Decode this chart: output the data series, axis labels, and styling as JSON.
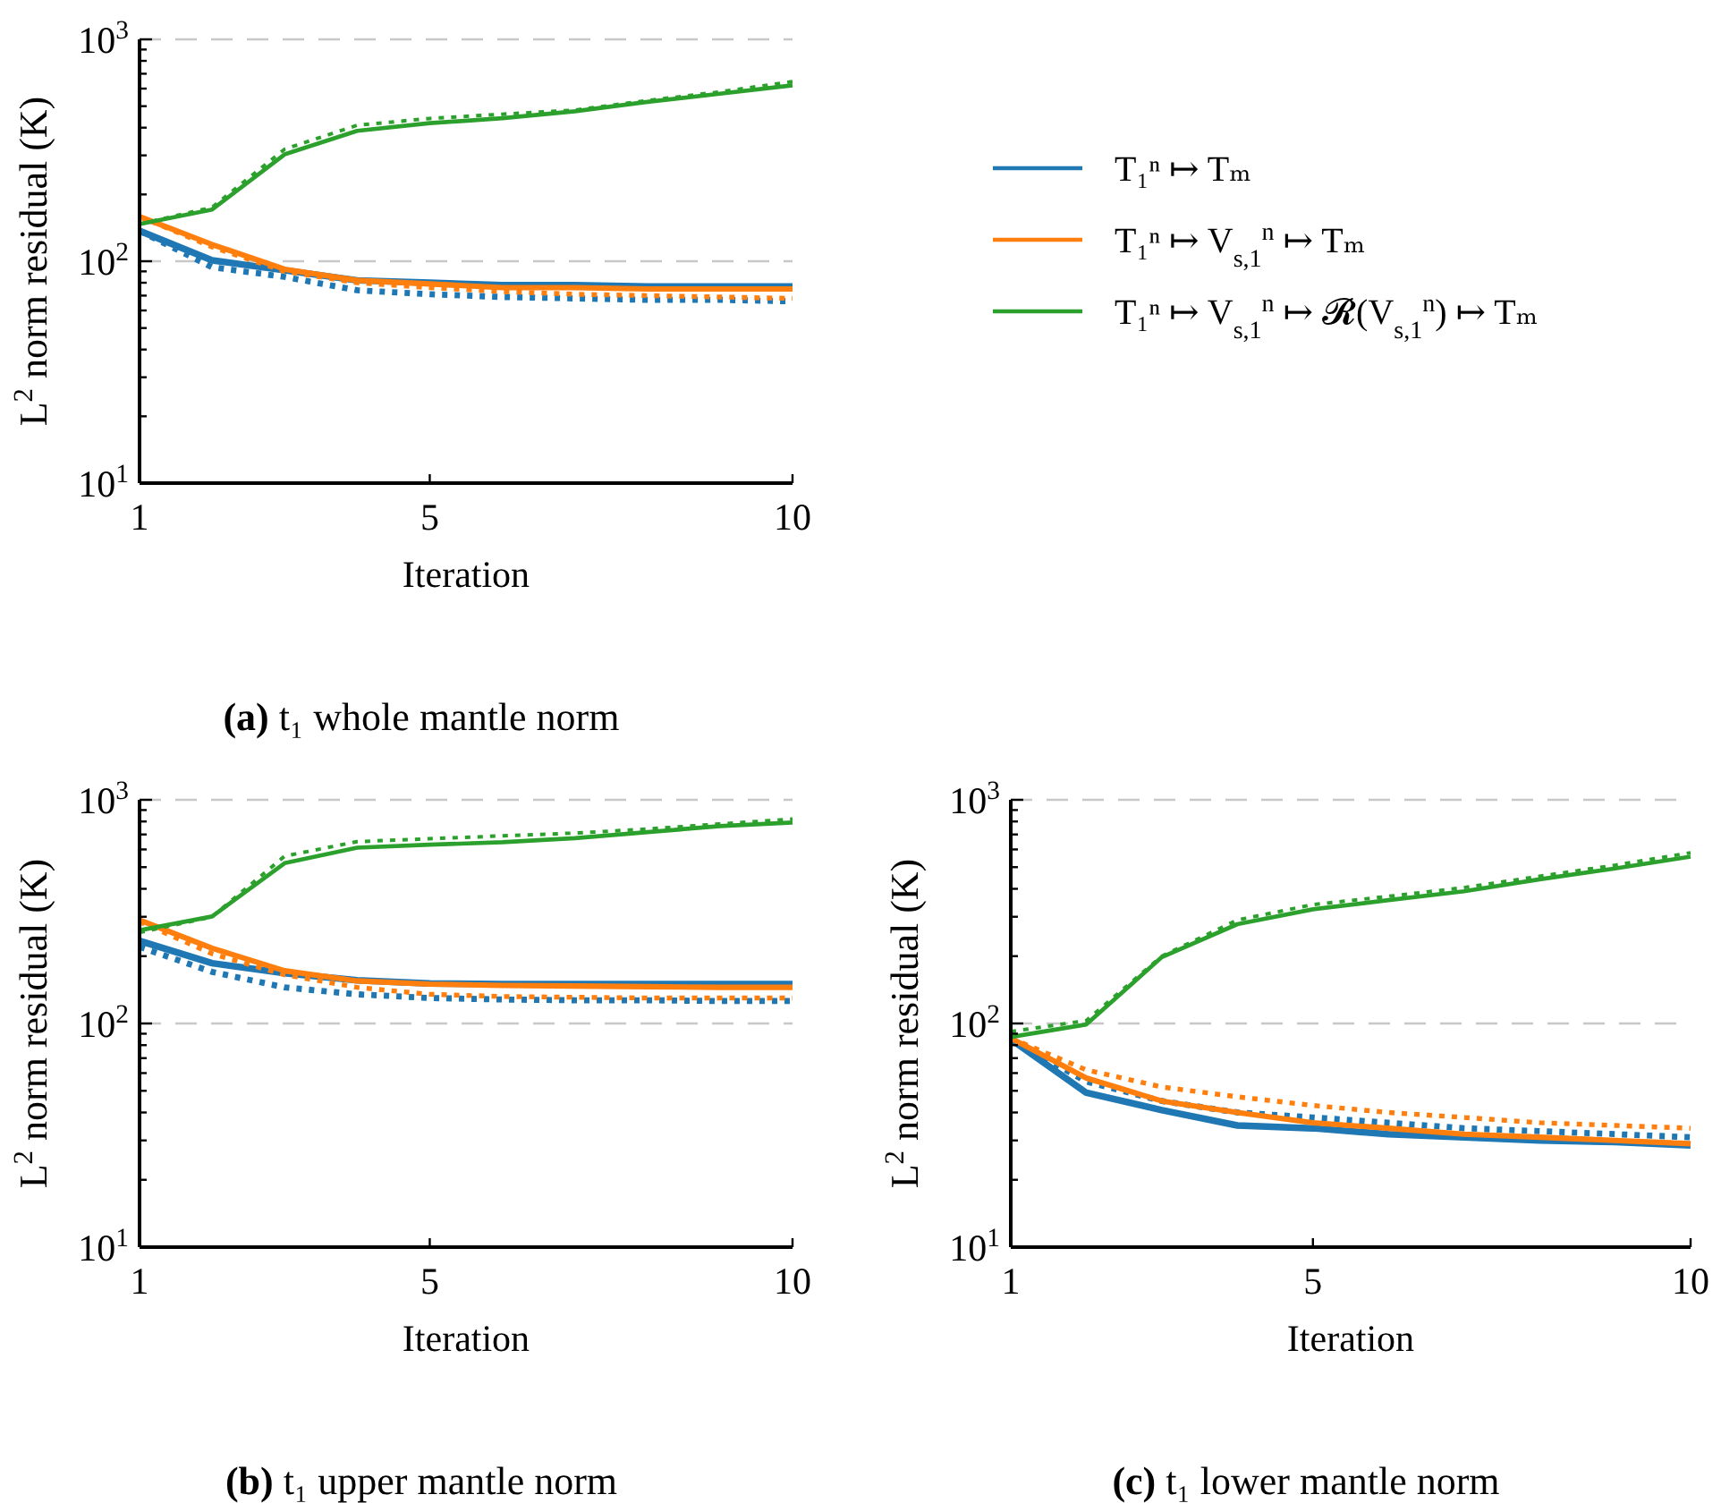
{
  "chart_data": [
    {
      "type": "line",
      "title": "(a) t₁ whole mantle norm",
      "xlabel": "Iteration",
      "ylabel": "L$^{2}$ norm residual (K)",
      "log": "y",
      "grid": "y",
      "legend": "right",
      "marker": "none",
      "xlim": [
        1,
        10
      ],
      "xticks": [
        1,
        5,
        10
      ],
      "ylim": [
        10,
        1000
      ],
      "yticks": [
        {
          "value": 10,
          "label": "10$^{1}$"
        },
        {
          "value": 20,
          "label": null
        },
        {
          "value": 30,
          "label": null
        },
        {
          "value": 40,
          "label": null
        },
        {
          "value": 50,
          "label": null
        },
        {
          "value": 60,
          "label": null
        },
        {
          "value": 70,
          "label": null
        },
        {
          "value": 80,
          "label": null
        },
        {
          "value": 90,
          "label": null
        },
        {
          "value": 100,
          "label": "10$^{2}$"
        },
        {
          "value": 200,
          "label": null
        },
        {
          "value": 300,
          "label": null
        },
        {
          "value": 400,
          "label": null
        },
        {
          "value": 500,
          "label": null
        },
        {
          "value": 600,
          "label": null
        },
        {
          "value": 700,
          "label": null
        },
        {
          "value": 800,
          "label": null
        },
        {
          "value": 900,
          "label": null
        },
        {
          "value": 1000,
          "label": "10$^{3}$"
        }
      ],
      "x": [
        1,
        2,
        3,
        4,
        5,
        6,
        7,
        8,
        9,
        10
      ],
      "series": [
        {
          "name": "T₁ⁿ ↦ Tₘ",
          "color": "#1f77b4",
          "line_style": "solid",
          "values": [
            137,
            101,
            91,
            82,
            80,
            78,
            78,
            77,
            77,
            77
          ]
        },
        {
          "color": "#1f77b4",
          "line_style": "dotted",
          "values": [
            137,
            94,
            85,
            74,
            71,
            69,
            68,
            67,
            67,
            66
          ]
        },
        {
          "name": "T₁ⁿ ↦ V$_{s,1}$$^{n}$ ↦ Tₘ",
          "color": "#ff7f0e",
          "line_style": "solid",
          "values": [
            159,
            119,
            92,
            82,
            79,
            76,
            76,
            75,
            75,
            75
          ]
        },
        {
          "color": "#ff7f0e",
          "line_style": "dotted",
          "values": [
            159,
            116,
            90,
            80,
            76,
            73,
            71,
            70,
            69,
            68
          ]
        },
        {
          "name": "T₁ⁿ ↦ V$_{s,1}$$^{n}$ ↦ 𝓡(V$_{s,1}$$^{n}$) ↦ Tₘ",
          "color": "#2ca02c",
          "line_style": "solid",
          "values": [
            147,
            171,
            303,
            387,
            419,
            441,
            474,
            523,
            569,
            621
          ]
        },
        {
          "color": "#2ca02c",
          "line_style": "dotted",
          "values": [
            147,
            175,
            320,
            410,
            440,
            460,
            480,
            530,
            580,
            645
          ]
        }
      ]
    },
    {
      "type": "line",
      "title": "(b) t₁ upper mantle norm",
      "xlabel": "Iteration",
      "ylabel": "L$^{2}$ norm residual (K)",
      "log": "y",
      "grid": "y",
      "marker": "none",
      "xlim": [
        1,
        10
      ],
      "xticks": [
        1,
        5,
        10
      ],
      "ylim": [
        10,
        1000
      ],
      "yticks": [
        {
          "value": 10,
          "label": "10$^{1}$"
        },
        {
          "value": 20,
          "label": null
        },
        {
          "value": 30,
          "label": null
        },
        {
          "value": 40,
          "label": null
        },
        {
          "value": 50,
          "label": null
        },
        {
          "value": 60,
          "label": null
        },
        {
          "value": 70,
          "label": null
        },
        {
          "value": 80,
          "label": null
        },
        {
          "value": 90,
          "label": null
        },
        {
          "value": 100,
          "label": "10$^{2}$"
        },
        {
          "value": 200,
          "label": null
        },
        {
          "value": 300,
          "label": null
        },
        {
          "value": 400,
          "label": null
        },
        {
          "value": 500,
          "label": null
        },
        {
          "value": 600,
          "label": null
        },
        {
          "value": 700,
          "label": null
        },
        {
          "value": 800,
          "label": null
        },
        {
          "value": 900,
          "label": null
        },
        {
          "value": 1000,
          "label": "10$^{3}$"
        }
      ],
      "x": [
        1,
        2,
        3,
        4,
        5,
        6,
        7,
        8,
        9,
        10
      ],
      "series": [
        {
          "color": "#1f77b4",
          "line_style": "solid",
          "values": [
            234,
            186,
            168,
            156,
            151,
            150,
            150,
            150,
            150,
            150
          ]
        },
        {
          "color": "#1f77b4",
          "line_style": "dotted",
          "values": [
            220,
            170,
            145,
            135,
            130,
            128,
            127,
            127,
            126,
            126
          ]
        },
        {
          "color": "#ff7f0e",
          "line_style": "solid",
          "values": [
            290,
            217,
            172,
            155,
            150,
            148,
            147,
            146,
            145,
            145
          ]
        },
        {
          "color": "#ff7f0e",
          "line_style": "dotted",
          "values": [
            285,
            205,
            165,
            145,
            135,
            132,
            131,
            130,
            130,
            130
          ]
        },
        {
          "color": "#2ca02c",
          "line_style": "solid",
          "values": [
            261,
            301,
            521,
            611,
            630,
            646,
            674,
            717,
            763,
            791
          ]
        },
        {
          "color": "#2ca02c",
          "line_style": "dotted",
          "values": [
            255,
            300,
            560,
            650,
            670,
            690,
            710,
            740,
            780,
            820
          ]
        }
      ]
    },
    {
      "type": "line",
      "title": "(c) t₁ lower mantle norm",
      "xlabel": "Iteration",
      "ylabel": "L$^{2}$ norm residual (K)",
      "log": "y",
      "grid": "y",
      "marker": "none",
      "xlim": [
        1,
        10
      ],
      "xticks": [
        1,
        5,
        10
      ],
      "ylim": [
        10,
        1000
      ],
      "yticks": [
        {
          "value": 10,
          "label": "10$^{1}$"
        },
        {
          "value": 20,
          "label": null
        },
        {
          "value": 30,
          "label": null
        },
        {
          "value": 40,
          "label": null
        },
        {
          "value": 50,
          "label": null
        },
        {
          "value": 60,
          "label": null
        },
        {
          "value": 70,
          "label": null
        },
        {
          "value": 80,
          "label": null
        },
        {
          "value": 90,
          "label": null
        },
        {
          "value": 100,
          "label": "10$^{2}$"
        },
        {
          "value": 200,
          "label": null
        },
        {
          "value": 300,
          "label": null
        },
        {
          "value": 400,
          "label": null
        },
        {
          "value": 500,
          "label": null
        },
        {
          "value": 600,
          "label": null
        },
        {
          "value": 700,
          "label": null
        },
        {
          "value": 800,
          "label": null
        },
        {
          "value": 900,
          "label": null
        },
        {
          "value": 1000,
          "label": "10$^{3}$"
        }
      ],
      "x": [
        1,
        2,
        3,
        4,
        5,
        6,
        7,
        8,
        9,
        10
      ],
      "series": [
        {
          "color": "#1f77b4",
          "line_style": "solid",
          "values": [
            85,
            49,
            41,
            35,
            34,
            32,
            31,
            30,
            29.5,
            28.5
          ]
        },
        {
          "color": "#1f77b4",
          "line_style": "dotted",
          "values": [
            85,
            55,
            45,
            40,
            38,
            36,
            34,
            33,
            32,
            31
          ]
        },
        {
          "color": "#ff7f0e",
          "line_style": "solid",
          "values": [
            86,
            57,
            45,
            40,
            36,
            34,
            32,
            31,
            30,
            29
          ]
        },
        {
          "color": "#ff7f0e",
          "line_style": "dotted",
          "values": [
            86,
            62,
            52,
            47,
            43,
            40,
            38,
            36,
            35,
            34
          ]
        },
        {
          "color": "#2ca02c",
          "line_style": "solid",
          "values": [
            87,
            99,
            198,
            278,
            324,
            356,
            390,
            441,
            493,
            557
          ]
        },
        {
          "color": "#2ca02c",
          "line_style": "dotted",
          "values": [
            92,
            103,
            200,
            290,
            340,
            370,
            405,
            455,
            510,
            580
          ]
        }
      ]
    }
  ]
}
